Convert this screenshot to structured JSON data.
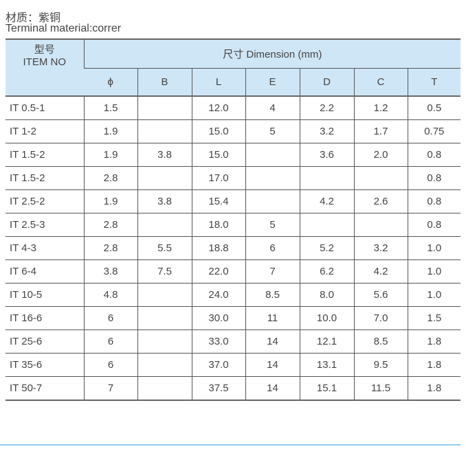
{
  "material_cn": "材质：紫铜",
  "material_en": "Terminal material:correr",
  "header": {
    "item_cn": "型号",
    "item_en": "ITEM NO",
    "dimension": "尺寸 Dimension (mm)",
    "columns": [
      "ϕ",
      "B",
      "L",
      "E",
      "D",
      "C",
      "T"
    ]
  },
  "rows": [
    [
      "IT  0.5-1",
      "1.5",
      "",
      "12.0",
      "4",
      "2.2",
      "1.2",
      "0.5"
    ],
    [
      "IT  1-2",
      "1.9",
      "",
      "15.0",
      "5",
      "3.2",
      "1.7",
      "0.75"
    ],
    [
      "IT  1.5-2",
      "1.9",
      "3.8",
      "15.0",
      "",
      "3.6",
      "2.0",
      "0.8"
    ],
    [
      "IT  1.5-2",
      "2.8",
      "",
      "17.0",
      "",
      "",
      "",
      "0.8"
    ],
    [
      "IT  2.5-2",
      "1.9",
      "3.8",
      "15.4",
      "",
      "4.2",
      "2.6",
      "0.8"
    ],
    [
      "IT  2.5-3",
      "2.8",
      "",
      "18.0",
      "5",
      "",
      "",
      "0.8"
    ],
    [
      "IT  4-3",
      "2.8",
      "5.5",
      "18.8",
      "6",
      "5.2",
      "3.2",
      "1.0"
    ],
    [
      "IT  6-4",
      "3.8",
      "7.5",
      "22.0",
      "7",
      "6.2",
      "4.2",
      "1.0"
    ],
    [
      "IT  10-5",
      "4.8",
      "",
      "24.0",
      "8.5",
      "8.0",
      "5.6",
      "1.0"
    ],
    [
      "IT  16-6",
      "6",
      "",
      "30.0",
      "11",
      "10.0",
      "7.0",
      "1.5"
    ],
    [
      "IT  25-6",
      "6",
      "",
      "33.0",
      "14",
      "12.1",
      "8.5",
      "1.8"
    ],
    [
      "IT  35-6",
      "6",
      "",
      "37.0",
      "14",
      "13.1",
      "9.5",
      "1.8"
    ],
    [
      "IT  50-7",
      "7",
      "",
      "37.5",
      "14",
      "15.1",
      "11.5",
      "1.8"
    ]
  ]
}
